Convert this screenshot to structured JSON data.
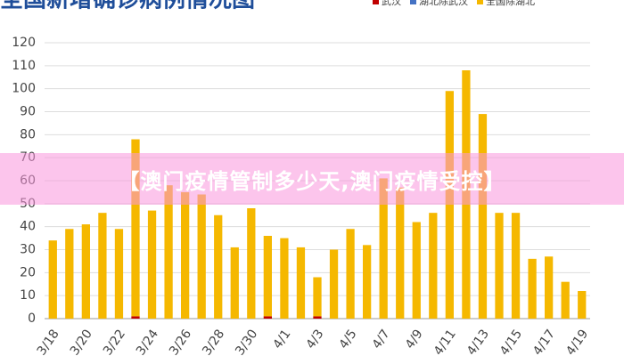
{
  "banner": "【澳门疫情管制多少天,澳门疫情受控】",
  "chart_data": {
    "type": "bar",
    "title": "全国新增确诊病例情况图",
    "stacked": true,
    "categories": [
      "3/18",
      null,
      "3/20",
      null,
      "3/22",
      null,
      "3/24",
      null,
      "3/26",
      null,
      "3/28",
      null,
      "3/30",
      null,
      "4/1",
      null,
      "4/3",
      null,
      "4/5",
      null,
      "4/7",
      null,
      "4/9",
      null,
      "4/11",
      null,
      "4/13",
      null,
      "4/15",
      null,
      "4/17",
      null,
      "4/19"
    ],
    "series": [
      {
        "name": "武汉",
        "color": "#c00000",
        "values": [
          0,
          0,
          0,
          0,
          0,
          1,
          0,
          0,
          0,
          0,
          0,
          0,
          0,
          1,
          0,
          0,
          1,
          0,
          0,
          0,
          0,
          0,
          0,
          0,
          0,
          0,
          0,
          0,
          0,
          0,
          0,
          0,
          0
        ]
      },
      {
        "name": "湖北除武汉",
        "color": "#4472c4",
        "values": [
          0,
          0,
          0,
          0,
          0,
          0,
          0,
          0,
          0,
          0,
          0,
          0,
          0,
          0,
          0,
          0,
          0,
          0,
          0,
          0,
          0,
          0,
          0,
          0,
          0,
          0,
          0,
          0,
          0,
          0,
          0,
          0,
          0
        ]
      },
      {
        "name": "全国除湖北",
        "color": "#f5b800",
        "values": [
          34,
          39,
          41,
          46,
          39,
          77,
          47,
          58,
          55,
          54,
          45,
          31,
          48,
          35,
          35,
          31,
          17,
          30,
          39,
          32,
          61,
          57,
          42,
          46,
          99,
          108,
          89,
          46,
          46,
          26,
          27,
          16,
          12
        ]
      }
    ],
    "ylim": [
      0,
      120
    ],
    "yticks": [
      0,
      10,
      20,
      30,
      40,
      50,
      60,
      70,
      80,
      90,
      100,
      110,
      120
    ],
    "grid": true
  }
}
